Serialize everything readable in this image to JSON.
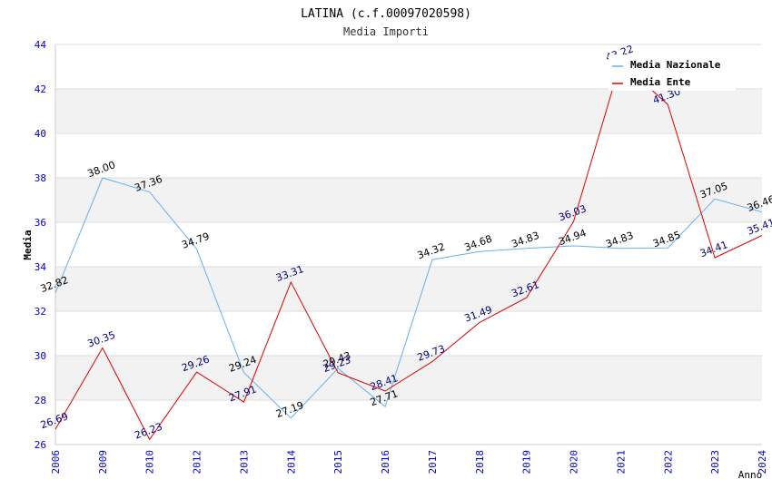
{
  "chart_data": {
    "type": "line",
    "title": "LATINA (c.f.00097020598)",
    "subtitle": "Media Importi",
    "xlabel": "Anno",
    "ylabel": "Media",
    "categories": [
      "2006",
      "2009",
      "2010",
      "2012",
      "2013",
      "2014",
      "2015",
      "2016",
      "2017",
      "2018",
      "2019",
      "2020",
      "2021",
      "2022",
      "2023",
      "2024"
    ],
    "series": [
      {
        "name": "Media Nazionale",
        "color": "#6aaee8",
        "label_color": "#000000",
        "values": [
          32.82,
          38.0,
          37.36,
          34.79,
          29.24,
          27.19,
          29.43,
          27.71,
          34.32,
          34.68,
          34.83,
          34.94,
          34.83,
          34.85,
          37.05,
          36.46
        ]
      },
      {
        "name": "Media Ente",
        "color": "#e00000",
        "label_color": "#000080",
        "values": [
          26.69,
          30.35,
          26.23,
          29.26,
          27.91,
          33.31,
          29.23,
          28.41,
          29.73,
          31.49,
          32.61,
          36.03,
          43.22,
          41.3,
          34.41,
          35.41
        ]
      }
    ],
    "ylim": [
      26,
      44
    ],
    "yticks": [
      26,
      28,
      30,
      32,
      34,
      36,
      38,
      40,
      42,
      44
    ],
    "grid": true,
    "legend": "top-right",
    "tick_color": "#0000cc"
  }
}
